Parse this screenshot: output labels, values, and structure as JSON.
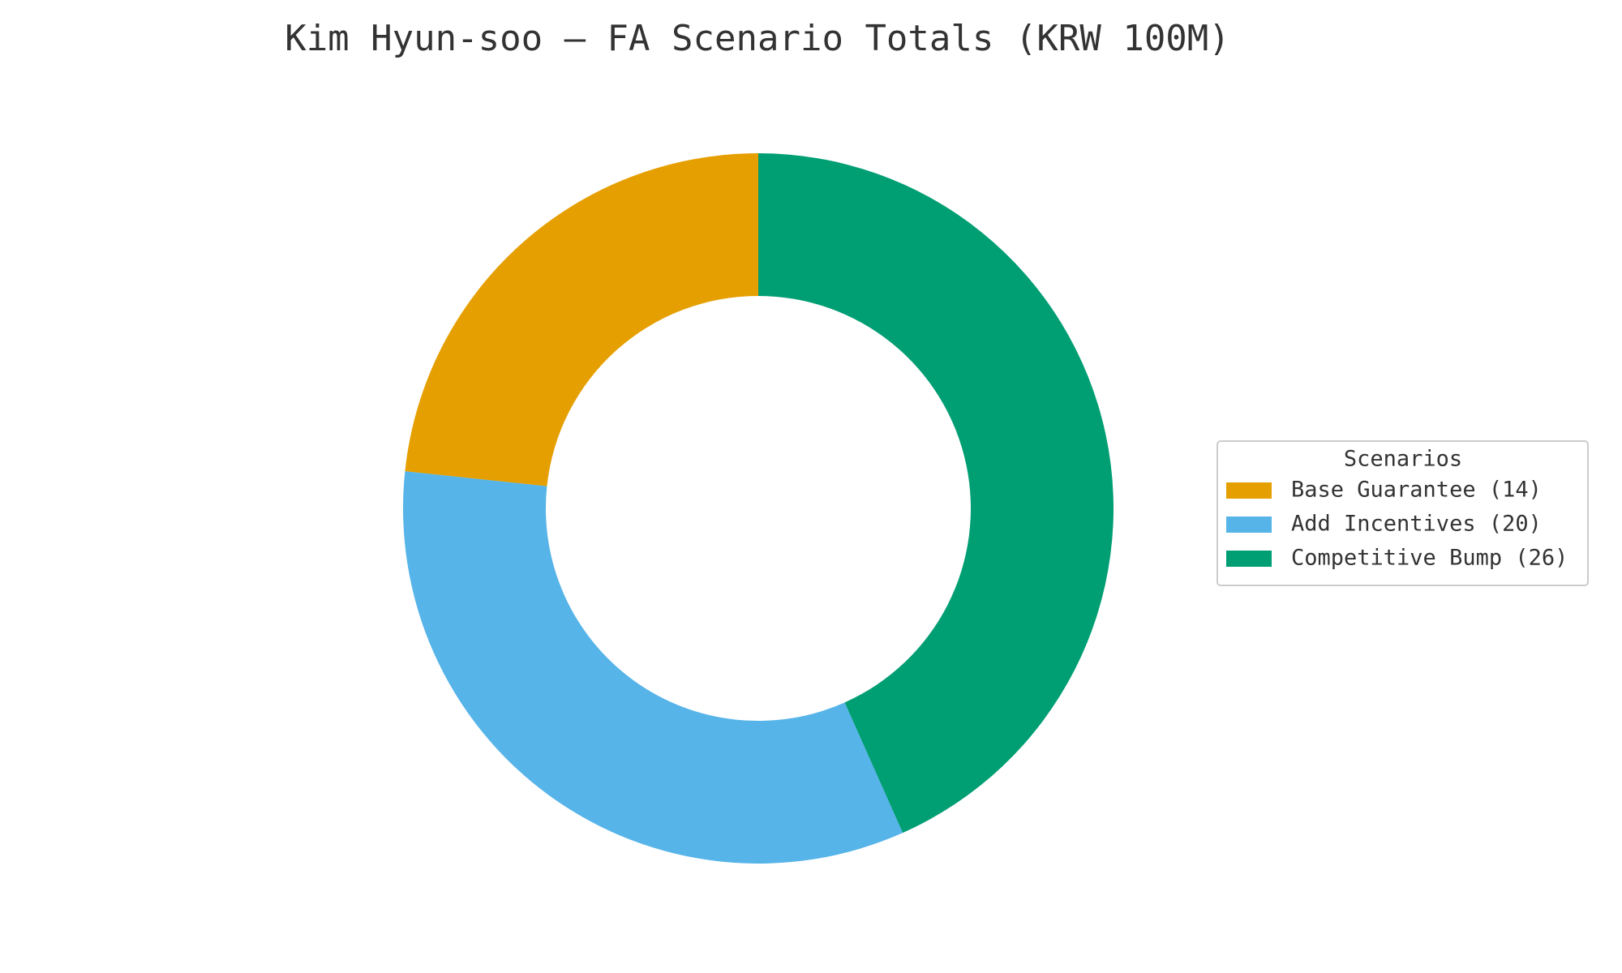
{
  "chart_data": {
    "type": "donut",
    "title": "Kim Hyun-soo — FA Scenario Totals (KRW 100M)",
    "categories": [
      "Base Guarantee (14)",
      "Add Incentives (20)",
      "Competitive Bump (26)"
    ],
    "values": [
      14,
      20,
      26
    ],
    "colors": [
      "#E69F00",
      "#56B4E9",
      "#009E73"
    ],
    "legend_title": "Scenarios",
    "legend": "right"
  }
}
